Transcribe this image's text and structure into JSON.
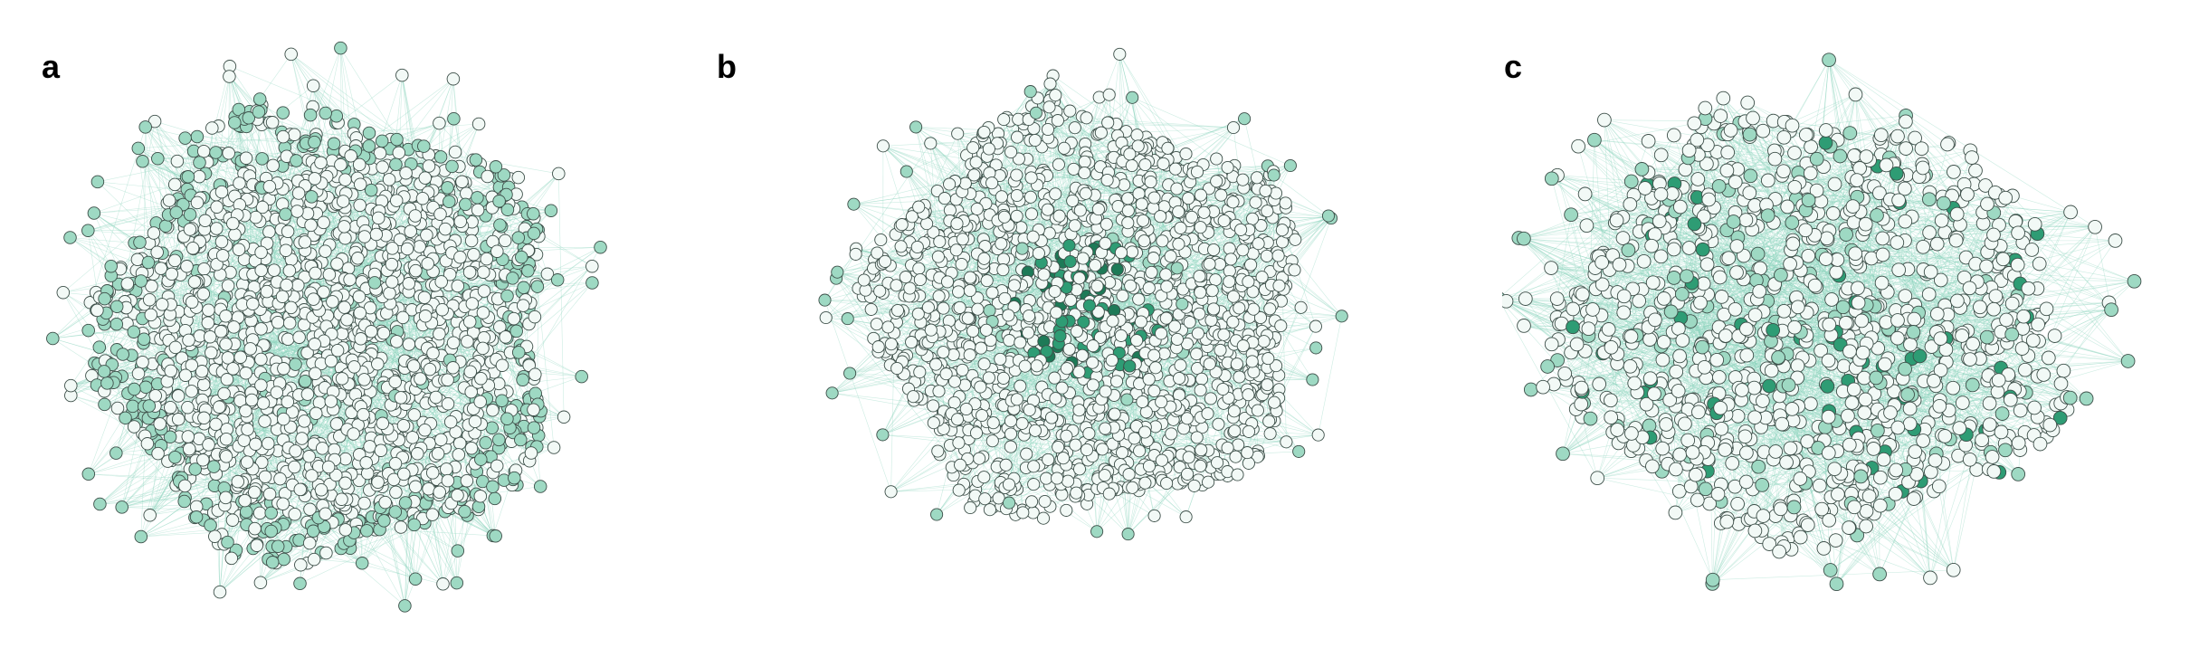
{
  "panels": [
    {
      "label": "a",
      "style": "uniform",
      "node_count": 1900
    },
    {
      "label": "b",
      "style": "central-hubs",
      "node_count": 1700
    },
    {
      "label": "c",
      "style": "scattered-hubs",
      "node_count": 1150
    }
  ],
  "colors": {
    "edge": "#8fd4bf",
    "node_stroke": "#3d4f49",
    "node_light": "#f2f9f6",
    "node_mid": "#9ed9c3",
    "node_dark": "#2e9c74",
    "node_darkest": "#1d7a57",
    "label": "#000000"
  }
}
